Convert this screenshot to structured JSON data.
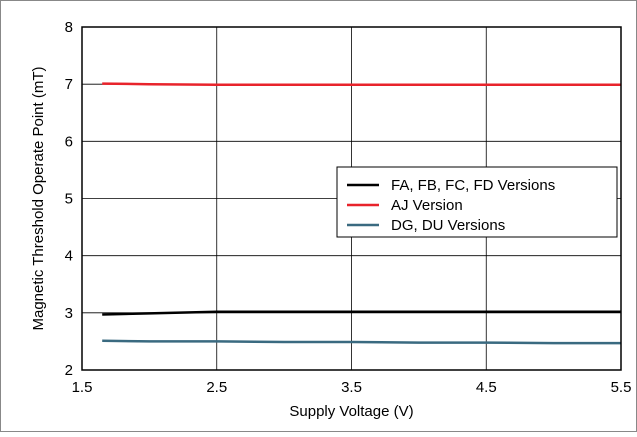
{
  "chart_data": {
    "type": "line",
    "title": "",
    "xlabel": "Supply Voltage (V)",
    "ylabel": "Magnetic Threshold Operate Point (mT)",
    "xlim": [
      1.5,
      5.5
    ],
    "ylim": [
      2,
      8
    ],
    "xticks": [
      "1.5",
      "2.5",
      "3.5",
      "4.5",
      "5.5"
    ],
    "yticks": [
      "2",
      "3",
      "4",
      "5",
      "6",
      "7",
      "8"
    ],
    "grid": true,
    "legend_position": "right",
    "series": [
      {
        "name": "FA, FB, FC, FD Versions",
        "color": "#000000",
        "x": [
          1.65,
          2.0,
          2.5,
          3.0,
          3.5,
          4.0,
          4.5,
          5.0,
          5.5
        ],
        "y": [
          2.97,
          2.99,
          3.02,
          3.02,
          3.02,
          3.02,
          3.02,
          3.02,
          3.02
        ]
      },
      {
        "name": "AJ Version",
        "color": "#e8232b",
        "x": [
          1.65,
          2.0,
          2.5,
          3.0,
          3.5,
          4.0,
          4.5,
          5.0,
          5.5
        ],
        "y": [
          7.01,
          7.0,
          6.99,
          6.99,
          6.99,
          6.99,
          6.99,
          6.99,
          6.99
        ]
      },
      {
        "name": "DG, DU Versions",
        "color": "#3a6a80",
        "x": [
          1.65,
          2.0,
          2.5,
          3.0,
          3.5,
          4.0,
          4.5,
          5.0,
          5.5
        ],
        "y": [
          2.51,
          2.5,
          2.5,
          2.49,
          2.49,
          2.48,
          2.48,
          2.47,
          2.47
        ]
      }
    ]
  }
}
